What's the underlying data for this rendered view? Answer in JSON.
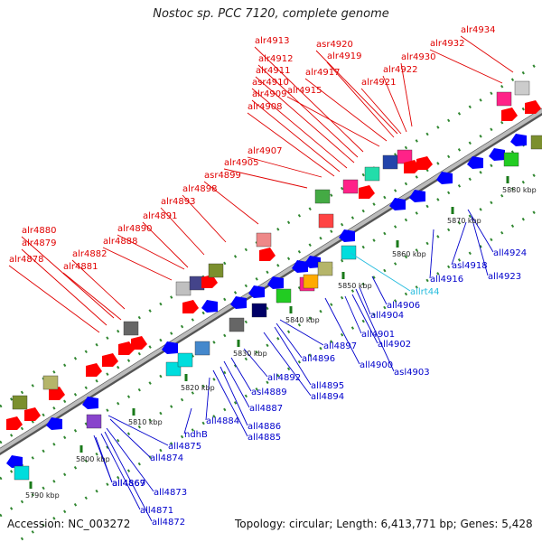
{
  "title": "Nostoc sp. PCC 7120, complete genome",
  "footer": {
    "accession": "Accession: NC_003272",
    "summary": "Topology: circular; Length: 6,413,771 bp; Genes: 5,428"
  },
  "colors": {
    "plus_label": "#e00000",
    "minus_label": "#0000cc",
    "rna_label": "#22bbdd",
    "backbone": "#999999",
    "tick": "#1a7a1a"
  },
  "scale_labels": [
    "5790 kbp",
    "5800 kbp",
    "5810 kbp",
    "5820 kbp",
    "5830 kbp",
    "5840 kbp",
    "5850 kbp",
    "5860 kbp",
    "5870 kbp",
    "5880 kbp"
  ],
  "plus_gene_labels": [
    "alr4878",
    "alr4879",
    "alr4880",
    "alr4881",
    "alr4882",
    "alr4888",
    "alr4890",
    "alr4891",
    "alr4893",
    "alr4898",
    "asr4899",
    "alr4905",
    "alr4907",
    "alr4908",
    "alr4909",
    "asr4910",
    "alr4911",
    "alr4912",
    "alr4913",
    "alr4915",
    "alr4917",
    "alr4919",
    "asr4920",
    "alr4921",
    "alr4922",
    "alr4930",
    "alr4932",
    "alr4934"
  ],
  "minus_gene_labels": [
    "all4867",
    "all4869",
    "all4871",
    "all4872",
    "all4873",
    "all4874",
    "all4875",
    "ndhB",
    "all4884",
    "all4885",
    "all4886",
    "all4887",
    "asl4889",
    "all4892",
    "all4894",
    "all4895",
    "all4896",
    "all4897",
    "all4900",
    "all4901",
    "all4902",
    "asl4903",
    "all4904",
    "all4906",
    "all4916",
    "asl4918",
    "all4923",
    "all4924"
  ],
  "rna_gene_labels": [
    "allrt44"
  ]
}
